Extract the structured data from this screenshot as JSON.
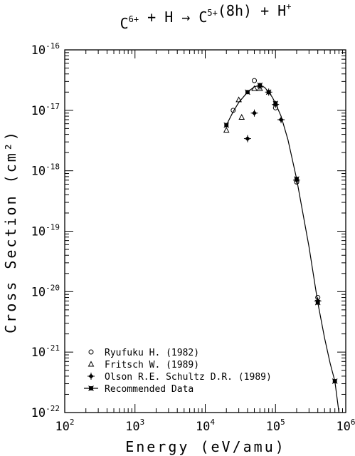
{
  "chart_data": {
    "type": "scatter",
    "title": {
      "parts": [
        {
          "t": "C"
        },
        {
          "t": "6+",
          "sup": true
        },
        {
          "t": " + H → C"
        },
        {
          "t": "5+",
          "sup": true
        },
        {
          "t": "(8h) + H"
        },
        {
          "t": "+",
          "sup": true
        }
      ]
    },
    "xlabel": "Energy (eV/amu)",
    "ylabel": "Cross Section (cm²)",
    "x_scale": "log",
    "y_scale": "log",
    "xlim": [
      100,
      1000000
    ],
    "ylim": [
      1e-22,
      1e-16
    ],
    "x_ticks": [
      {
        "value": 100,
        "base": "10",
        "exp": "2"
      },
      {
        "value": 1000,
        "base": "10",
        "exp": "3"
      },
      {
        "value": 10000,
        "base": "10",
        "exp": "4"
      },
      {
        "value": 100000,
        "base": "10",
        "exp": "5"
      },
      {
        "value": 1000000,
        "base": "10",
        "exp": "6"
      }
    ],
    "y_ticks": [
      {
        "value": 1e-22,
        "base": "10",
        "exp": "-22"
      },
      {
        "value": 1e-21,
        "base": "10",
        "exp": "-21"
      },
      {
        "value": 1e-20,
        "base": "10",
        "exp": "-20"
      },
      {
        "value": 1e-19,
        "base": "10",
        "exp": "-19"
      },
      {
        "value": 1e-18,
        "base": "10",
        "exp": "-18"
      },
      {
        "value": 1e-17,
        "base": "10",
        "exp": "-17"
      },
      {
        "value": 1e-16,
        "base": "10",
        "exp": "-16"
      }
    ],
    "grid": false,
    "legend_position": "bottom-left",
    "series": [
      {
        "name": "Ryufuku H. (1982)",
        "marker": "open-circle",
        "points": [
          {
            "x": 25000,
            "y": 1e-17
          },
          {
            "x": 50000,
            "y": 3.1e-17
          },
          {
            "x": 100000,
            "y": 1.1e-17
          },
          {
            "x": 200000,
            "y": 6.5e-19
          },
          {
            "x": 400000,
            "y": 8e-21
          }
        ]
      },
      {
        "name": "Fritsch W. (1989)",
        "marker": "open-triangle",
        "points": [
          {
            "x": 20000,
            "y": 4.7e-18
          },
          {
            "x": 30000,
            "y": 1.5e-17
          },
          {
            "x": 33000,
            "y": 7.7e-18
          },
          {
            "x": 50000,
            "y": 2.3e-17
          },
          {
            "x": 60000,
            "y": 2.3e-17
          }
        ]
      },
      {
        "name": "Olson R.E. Schultz D.R. (1989)",
        "marker": "cross-diamond",
        "points": [
          {
            "x": 40000,
            "y": 3.4e-18
          },
          {
            "x": 50000,
            "y": 9e-18
          },
          {
            "x": 60000,
            "y": 2.5e-17
          },
          {
            "x": 80000,
            "y": 2e-17
          },
          {
            "x": 100000,
            "y": 1.25e-17
          },
          {
            "x": 120000,
            "y": 7e-18
          },
          {
            "x": 200000,
            "y": 7e-19
          },
          {
            "x": 400000,
            "y": 7e-21
          }
        ]
      },
      {
        "name": "Recommended Data",
        "marker": "square-x-line",
        "points": [
          {
            "x": 20000,
            "y": 5.7e-18
          },
          {
            "x": 40000,
            "y": 2e-17
          },
          {
            "x": 60000,
            "y": 2.6e-17
          },
          {
            "x": 80000,
            "y": 2e-17
          },
          {
            "x": 100000,
            "y": 1.3e-17
          },
          {
            "x": 200000,
            "y": 7.3e-19
          },
          {
            "x": 400000,
            "y": 6.6e-21
          },
          {
            "x": 700000,
            "y": 3.3e-22
          }
        ],
        "curve": [
          {
            "x": 20000,
            "y": 5.7e-18
          },
          {
            "x": 25000,
            "y": 9.5e-18
          },
          {
            "x": 30000,
            "y": 1.35e-17
          },
          {
            "x": 40000,
            "y": 2e-17
          },
          {
            "x": 50000,
            "y": 2.45e-17
          },
          {
            "x": 60000,
            "y": 2.6e-17
          },
          {
            "x": 70000,
            "y": 2.4e-17
          },
          {
            "x": 80000,
            "y": 2e-17
          },
          {
            "x": 90000,
            "y": 1.65e-17
          },
          {
            "x": 100000,
            "y": 1.3e-17
          },
          {
            "x": 120000,
            "y": 8e-18
          },
          {
            "x": 150000,
            "y": 3.3e-18
          },
          {
            "x": 200000,
            "y": 7.3e-19
          },
          {
            "x": 300000,
            "y": 5.5e-20
          },
          {
            "x": 400000,
            "y": 6.6e-21
          },
          {
            "x": 500000,
            "y": 1.7e-21
          },
          {
            "x": 600000,
            "y": 6.5e-22
          },
          {
            "x": 700000,
            "y": 3.3e-22
          },
          {
            "x": 800000,
            "y": 1e-22
          }
        ]
      }
    ]
  }
}
